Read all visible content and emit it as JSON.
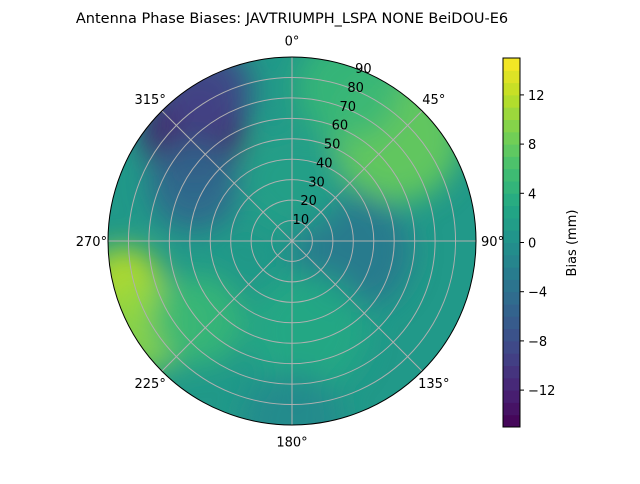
{
  "chart_data": {
    "type": "contour-polar",
    "title": "Antenna Phase Biases: JAVTRIUMPH_LSPA NONE BeiDOU-E6",
    "theta_direction": "clockwise",
    "theta_zero": "north",
    "theta_tick_labels": [
      "0°",
      "45°",
      "90°",
      "135°",
      "180°",
      "225°",
      "270°",
      "315°"
    ],
    "r_range": [
      0,
      90
    ],
    "r_tick_labels": [
      "10",
      "20",
      "30",
      "40",
      "50",
      "60",
      "70",
      "80",
      "90"
    ],
    "grid": true,
    "colorbar": {
      "label": "Bias (mm)",
      "range": [
        -15,
        15
      ],
      "levels": 30,
      "colormap": "viridis",
      "tick_labels": [
        "−12",
        "−8",
        "−4",
        "0",
        "4",
        "8",
        "12"
      ],
      "tick_values": [
        -12,
        -8,
        -4,
        0,
        4,
        8,
        12
      ]
    },
    "background_value": 1,
    "features": [
      {
        "azimuth": 318,
        "zenith": 72,
        "value": -13,
        "spread": 16
      },
      {
        "azimuth": 330,
        "zenith": 85,
        "value": -9,
        "spread": 14
      },
      {
        "azimuth": 300,
        "zenith": 55,
        "value": -5,
        "spread": 14
      },
      {
        "azimuth": 255,
        "zenith": 85,
        "value": 12,
        "spread": 12
      },
      {
        "azimuth": 240,
        "zenith": 82,
        "value": 10,
        "spread": 14
      },
      {
        "azimuth": 230,
        "zenith": 60,
        "value": 5,
        "spread": 14
      },
      {
        "azimuth": 45,
        "zenith": 72,
        "value": 8,
        "spread": 20
      },
      {
        "azimuth": 20,
        "zenith": 80,
        "value": 5,
        "spread": 16
      },
      {
        "azimuth": 100,
        "zenith": 30,
        "value": -3,
        "spread": 18
      },
      {
        "azimuth": 170,
        "zenith": 45,
        "value": 3,
        "spread": 18
      },
      {
        "azimuth": 180,
        "zenith": 88,
        "value": -1,
        "spread": 15
      },
      {
        "azimuth": 0,
        "zenith": 30,
        "value": 2,
        "spread": 16
      }
    ]
  }
}
